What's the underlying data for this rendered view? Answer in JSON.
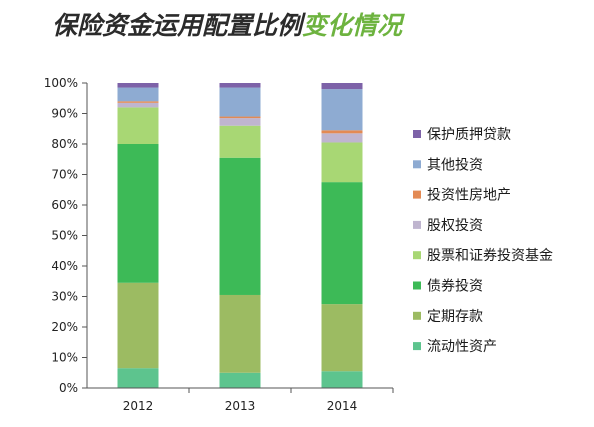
{
  "title": {
    "part1": "保险资金运用配置比例",
    "part2": "变化情况",
    "part1_color": "#2b2b2b",
    "part2_color": "#6db33f"
  },
  "chart_data": {
    "type": "stacked-bar",
    "categories": [
      "2012",
      "2013",
      "2014"
    ],
    "ylim": [
      0,
      100
    ],
    "yticks": [
      "0%",
      "10%",
      "20%",
      "30%",
      "40%",
      "50%",
      "60%",
      "70%",
      "80%",
      "90%",
      "100%"
    ],
    "grid": false,
    "legend_position": "right",
    "series": [
      {
        "name": "流动性资产",
        "color": "#5dc48e",
        "values": [
          6.5,
          5,
          5.5
        ]
      },
      {
        "name": "定期存款",
        "color": "#9cbb62",
        "values": [
          28,
          25.5,
          22
        ]
      },
      {
        "name": "债券投资",
        "color": "#3dba57",
        "values": [
          45.5,
          45,
          40
        ]
      },
      {
        "name": "股票和证券投资基金",
        "color": "#a8d774",
        "values": [
          12,
          10.5,
          13
        ]
      },
      {
        "name": "股权投资",
        "color": "#bfb5cf",
        "values": [
          1.5,
          2.5,
          3
        ]
      },
      {
        "name": "投资性房地产",
        "color": "#e38a54",
        "values": [
          0.5,
          0.5,
          1
        ]
      },
      {
        "name": "其他投资",
        "color": "#8eabd2",
        "values": [
          4.5,
          9.5,
          13.5
        ]
      },
      {
        "name": "保护质押贷款",
        "color": "#7d62a8",
        "values": [
          1.5,
          1.5,
          2
        ]
      }
    ]
  }
}
